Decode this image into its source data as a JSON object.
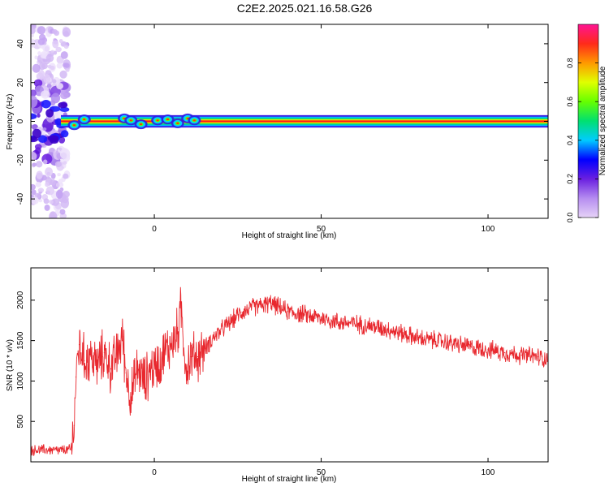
{
  "figure": {
    "title": "C2E2.2025.021.16.58.G26"
  },
  "chart_data": [
    {
      "type": "heatmap",
      "title": "C2E2.2025.021.16.58.G26",
      "xlabel": "Height of straight line (km)",
      "ylabel": "Frequency (Hz)",
      "xlim": [
        -37,
        118
      ],
      "ylim": [
        -50,
        50
      ],
      "xticks": [
        0,
        50,
        100
      ],
      "yticks": [
        -40,
        -20,
        0,
        20,
        40
      ],
      "colorbar": {
        "label": "Normalized spectral amplitude",
        "range": [
          0.0,
          1.0
        ],
        "ticks": [
          0.0,
          0.2,
          0.4,
          0.6,
          0.8
        ],
        "tick_labels": [
          "0.0",
          "0.2",
          "0.4",
          "0.6",
          "0.8"
        ],
        "colormap": [
          "#e6d3f7",
          "#b58cf0",
          "#6a1fe0",
          "#0000ff",
          "#00ccff",
          "#00e070",
          "#66ff00",
          "#e0ff00",
          "#ff9900",
          "#ff2a1a",
          "#ff1493"
        ]
      },
      "ridge_frequency_hz": 0,
      "noise_region_km": [
        -37,
        -26
      ],
      "grid": false
    },
    {
      "type": "line",
      "xlabel": "Height of straight line (km)",
      "ylabel": "SNR (10 * v/v)",
      "xlim": [
        -37,
        118
      ],
      "ylim": [
        0,
        2400
      ],
      "xticks": [
        0,
        50,
        100
      ],
      "yticks": [
        500,
        1000,
        1500,
        2000
      ],
      "series": [
        {
          "color": "#e8282e",
          "x": [
            -37,
            -33,
            -29,
            -25,
            -24,
            -23.5,
            -22.5,
            -21,
            -19,
            -17,
            -15,
            -13,
            -11,
            -9.5,
            -8.5,
            -7,
            -5,
            -3,
            -1,
            1,
            3,
            5,
            7,
            8,
            9.5,
            11,
            13,
            15,
            18,
            22,
            26,
            30,
            35,
            40,
            45,
            50,
            55,
            60,
            65,
            70,
            75,
            80,
            85,
            90,
            95,
            100,
            105,
            110,
            115,
            118
          ],
          "y": [
            140,
            150,
            140,
            150,
            450,
            1050,
            1450,
            1250,
            1300,
            1200,
            1350,
            1150,
            1350,
            1550,
            1100,
            800,
            1150,
            1000,
            1150,
            1200,
            1350,
            1450,
            1600,
            1900,
            1150,
            1300,
            1300,
            1400,
            1550,
            1700,
            1850,
            1920,
            1960,
            1860,
            1820,
            1780,
            1730,
            1710,
            1680,
            1640,
            1580,
            1520,
            1500,
            1460,
            1420,
            1390,
            1350,
            1320,
            1300,
            1270
          ]
        }
      ],
      "grid": false
    }
  ]
}
